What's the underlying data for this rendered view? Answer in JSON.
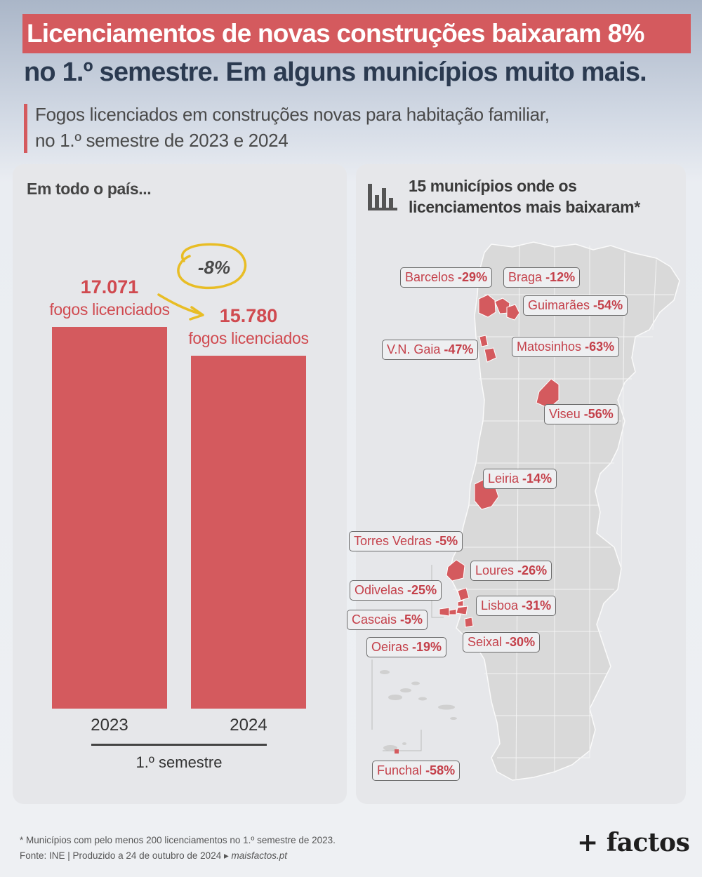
{
  "title": {
    "line1": "Licenciamentos de novas construções baixaram 8%",
    "line2": "no 1.º semestre. Em alguns municípios muito mais."
  },
  "subtitle": {
    "line1": "Fogos licenciados em construções novas para habitação familiar,",
    "line2": "no 1.º semestre de 2023 e 2024"
  },
  "colors": {
    "accent": "#d45a5e",
    "title_dark": "#2b3a50",
    "panel": "#e6e7ea",
    "map_land": "#d8d8d8"
  },
  "left_panel": {
    "heading": "Em todo o país...",
    "change_label": "-8%",
    "period_label": "1.º semestre"
  },
  "right_panel": {
    "heading_line1": "15 municípios onde os",
    "heading_line2": "licenciamentos mais baixaram*",
    "icon": "bar-chart-icon"
  },
  "chart_data": {
    "type": "bar",
    "categories": [
      "2023",
      "2024"
    ],
    "values": [
      17071,
      15780
    ],
    "value_labels": [
      "17.071",
      "15.780"
    ],
    "unit_label": "fogos licenciados",
    "ylim": [
      0,
      17071
    ]
  },
  "municipalities": [
    {
      "name": "Barcelos",
      "change": "-29%"
    },
    {
      "name": "Braga",
      "change": "-12%"
    },
    {
      "name": "Guimarães",
      "change": "-54%"
    },
    {
      "name": "V.N. Gaia",
      "change": "-47%"
    },
    {
      "name": "Matosinhos",
      "change": "-63%"
    },
    {
      "name": "Viseu",
      "change": "-56%"
    },
    {
      "name": "Leiria",
      "change": "-14%"
    },
    {
      "name": "Torres Vedras",
      "change": "-5%"
    },
    {
      "name": "Loures",
      "change": "-26%"
    },
    {
      "name": "Odivelas",
      "change": "-25%"
    },
    {
      "name": "Lisboa",
      "change": "-31%"
    },
    {
      "name": "Cascais",
      "change": "-5%"
    },
    {
      "name": "Seixal",
      "change": "-30%"
    },
    {
      "name": "Oeiras",
      "change": "-19%"
    },
    {
      "name": "Funchal",
      "change": "-58%"
    }
  ],
  "footer": {
    "note": "* Municípios com pelo menos 200 licenciamentos no 1.º semestre de 2023.",
    "source": "Fonte: INE  |  Produzido a 24 de outubro de 2024 ▸",
    "site": "maisfactos.pt",
    "brand": "+ factos"
  }
}
